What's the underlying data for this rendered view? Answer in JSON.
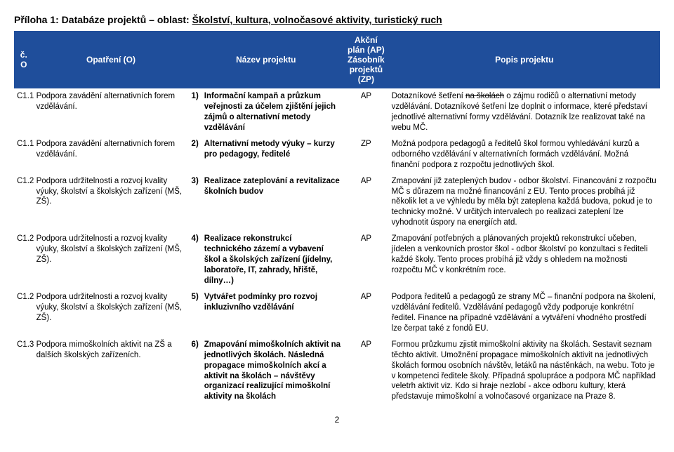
{
  "header": {
    "prefix": "Příloha 1: Databáze projektů – oblast: ",
    "underlined": "Školství, kultura, volnočasové aktivity, turistický ruch"
  },
  "table": {
    "header_bg": "#1f4e9b",
    "header_color": "#ffffff",
    "columns": {
      "co": "č. O",
      "op": "Opatření (O)",
      "name": "Název projektu",
      "ap": "Akční plán (AP) Zásobník projektů (ZP)",
      "desc": "Popis projektu"
    },
    "rows": [
      {
        "co": "C1.1",
        "op": "Podpora zavádění alternativních forem vzdělávání.",
        "num": "1)",
        "name": "Informační kampaň a průzkum veřejnosti za účelem zjištění jejich zájmů o alternativní metody vzdělávání",
        "ap": "AP",
        "desc_pre": "Dotazníkové šetření ",
        "desc_strike": "na školách",
        "desc_post": " o zájmu rodičů o alternativní metody vzdělávání. Dotazníkové šetření lze doplnit o informace, které představí jednotlivé alternativní formy vzdělávání. Dotazník lze realizovat také na webu MČ."
      },
      {
        "co": "C1.1",
        "op": "Podpora zavádění alternativních forem vzdělávání.",
        "num": "2)",
        "name": "Alternativní metody výuky – kurzy pro pedagogy, ředitelé",
        "ap": "ZP",
        "desc": "Možná podpora pedagogů a ředitelů škol formou vyhledávání kurzů a odborného vzdělávání v alternativních formách vzdělávání. Možná finanční podpora z rozpočtu jednotlivých škol."
      },
      {
        "co": "C1.2",
        "op": "Podpora udržitelnosti a rozvoj kvality výuky, školství a školských zařízení (MŠ, ZŠ).",
        "num": "3)",
        "name": "Realizace zateplování a revitalizace školních budov",
        "ap": "AP",
        "desc": "Zmapování již zateplených budov - odbor školství. Financování z rozpočtu MČ s důrazem na možné financování z EU. Tento proces probíhá již několik let a ve výhledu by měla být zateplena každá budova, pokud je to technicky možné. V určitých intervalech po realizaci zateplení lze vyhodnotit úspory na energiích atd."
      },
      {
        "co": "C1.2",
        "op": "Podpora udržitelnosti a rozvoj kvality výuky, školství a školských zařízení (MŠ, ZŠ).",
        "num": "4)",
        "name": "Realizace rekonstrukcí technického zázemí a vybavení škol a školských zařízení (jídelny, laboratoře, IT, zahrady, hřiště, dílny…)",
        "ap": "AP",
        "desc": "Zmapování potřebných a plánovaných projektů rekonstrukcí učeben, jídelen a venkovních prostor škol - odbor školství po konzultaci s řediteli každé školy. Tento proces probíhá již vždy s ohledem na možnosti rozpočtu MČ v konkrétním roce."
      },
      {
        "co": "C1.2",
        "op": "Podpora udržitelnosti a rozvoj kvality výuky, školství a školských zařízení (MŠ, ZŠ).",
        "num": "5)",
        "name": "Vytvářet podmínky pro rozvoj inkluzivního vzdělávání",
        "ap": "AP",
        "desc": "Podpora ředitelů a pedagogů ze strany MČ – finanční podpora na školení, vzdělávání ředitelů. Vzdělávání pedagogů vždy podporuje konkrétní ředitel. Finance na případné vzdělávání a vytváření vhodného prostředí lze čerpat také z fondů EU."
      },
      {
        "co": "C1.3",
        "op": "Podpora mimoškolních aktivit na ZŠ a dalších školských zařízeních.",
        "num": "6)",
        "name": "Zmapování mimoškolních aktivit na jednotlivých školách. Následná propagace mimoškolních akcí a aktivit na školách – návštěvy organizací realizující mimoškolní aktivity na školách",
        "ap": "AP",
        "desc": "Formou průzkumu zjistit mimoškolní aktivity na školách. Sestavit seznam těchto aktivit. Umožnění propagace mimoškolních aktivit na jednotlivých školách formou osobních návštěv, letáků na nástěnkách, na webu. Toto je v kompetenci ředitele školy. Případná spolupráce a podpora MČ například veletrh aktivit viz. Kdo si hraje nezlobí - akce odboru kultury, která představuje mimoškolní a volnočasové organizace na Praze 8."
      }
    ]
  },
  "page_number": "2"
}
